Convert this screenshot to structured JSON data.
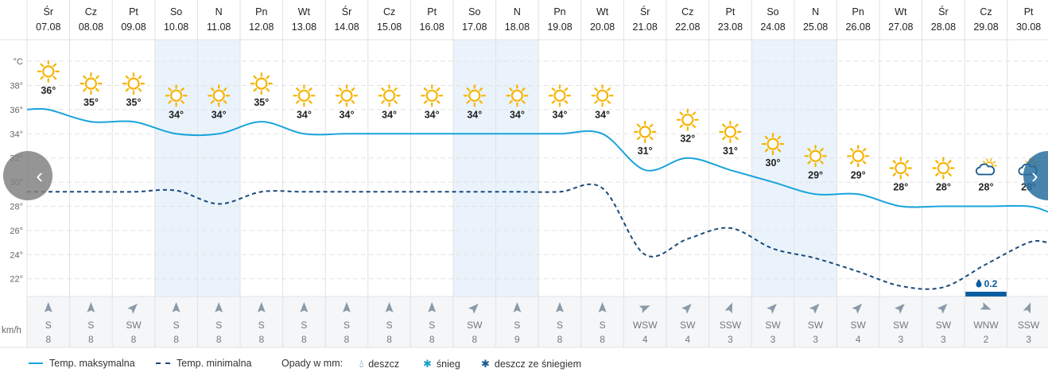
{
  "chart_data": {
    "type": "line",
    "y_axis_unit": "°C",
    "y_ticks": [
      38,
      36,
      34,
      32,
      30,
      28,
      26,
      24,
      22
    ],
    "ylim": [
      20.5,
      39.5
    ],
    "days": [
      {
        "dow": "Śr",
        "date": "07.08",
        "weekend": false,
        "icon": "sun-icon",
        "tmax": 36,
        "tmin": 29.2,
        "wind_dir": "S",
        "wind_deg": 180,
        "wind_speed": 8
      },
      {
        "dow": "Cz",
        "date": "08.08",
        "weekend": false,
        "icon": "sun-icon",
        "tmax": 35,
        "tmin": 29.2,
        "wind_dir": "S",
        "wind_deg": 180,
        "wind_speed": 8
      },
      {
        "dow": "Pt",
        "date": "09.08",
        "weekend": false,
        "icon": "sun-icon",
        "tmax": 35,
        "tmin": 29.2,
        "wind_dir": "SW",
        "wind_deg": 225,
        "wind_speed": 8
      },
      {
        "dow": "So",
        "date": "10.08",
        "weekend": true,
        "icon": "sun-icon",
        "tmax": 34,
        "tmin": 29.3,
        "wind_dir": "S",
        "wind_deg": 180,
        "wind_speed": 8
      },
      {
        "dow": "N",
        "date": "11.08",
        "weekend": true,
        "icon": "sun-icon",
        "tmax": 34,
        "tmin": 28.2,
        "wind_dir": "S",
        "wind_deg": 180,
        "wind_speed": 8
      },
      {
        "dow": "Pn",
        "date": "12.08",
        "weekend": false,
        "icon": "sun-icon",
        "tmax": 35,
        "tmin": 29.2,
        "wind_dir": "S",
        "wind_deg": 180,
        "wind_speed": 8
      },
      {
        "dow": "Wt",
        "date": "13.08",
        "weekend": false,
        "icon": "sun-icon",
        "tmax": 34,
        "tmin": 29.2,
        "wind_dir": "S",
        "wind_deg": 180,
        "wind_speed": 8
      },
      {
        "dow": "Śr",
        "date": "14.08",
        "weekend": false,
        "icon": "sun-icon",
        "tmax": 34,
        "tmin": 29.2,
        "wind_dir": "S",
        "wind_deg": 180,
        "wind_speed": 8
      },
      {
        "dow": "Cz",
        "date": "15.08",
        "weekend": false,
        "icon": "sun-icon",
        "tmax": 34,
        "tmin": 29.2,
        "wind_dir": "S",
        "wind_deg": 180,
        "wind_speed": 8
      },
      {
        "dow": "Pt",
        "date": "16.08",
        "weekend": false,
        "icon": "sun-icon",
        "tmax": 34,
        "tmin": 29.2,
        "wind_dir": "S",
        "wind_deg": 180,
        "wind_speed": 8
      },
      {
        "dow": "So",
        "date": "17.08",
        "weekend": true,
        "icon": "sun-icon",
        "tmax": 34,
        "tmin": 29.2,
        "wind_dir": "SW",
        "wind_deg": 225,
        "wind_speed": 8
      },
      {
        "dow": "N",
        "date": "18.08",
        "weekend": true,
        "icon": "sun-icon",
        "tmax": 34,
        "tmin": 29.2,
        "wind_dir": "S",
        "wind_deg": 180,
        "wind_speed": 9
      },
      {
        "dow": "Pn",
        "date": "19.08",
        "weekend": false,
        "icon": "sun-icon",
        "tmax": 34,
        "tmin": 29.2,
        "wind_dir": "S",
        "wind_deg": 180,
        "wind_speed": 8
      },
      {
        "dow": "Wt",
        "date": "20.08",
        "weekend": false,
        "icon": "sun-icon",
        "tmax": 34,
        "tmin": 29.5,
        "wind_dir": "S",
        "wind_deg": 180,
        "wind_speed": 8
      },
      {
        "dow": "Śr",
        "date": "21.08",
        "weekend": false,
        "icon": "sun-icon",
        "tmax": 31,
        "tmin": 24.0,
        "wind_dir": "WSW",
        "wind_deg": 247,
        "wind_speed": 4
      },
      {
        "dow": "Cz",
        "date": "22.08",
        "weekend": false,
        "icon": "sun-icon",
        "tmax": 32,
        "tmin": 25.3,
        "wind_dir": "SW",
        "wind_deg": 225,
        "wind_speed": 4
      },
      {
        "dow": "Pt",
        "date": "23.08",
        "weekend": false,
        "icon": "sun-icon",
        "tmax": 31,
        "tmin": 26.2,
        "wind_dir": "SSW",
        "wind_deg": 202,
        "wind_speed": 3
      },
      {
        "dow": "So",
        "date": "24.08",
        "weekend": true,
        "icon": "sun-icon",
        "tmax": 30,
        "tmin": 24.5,
        "wind_dir": "SW",
        "wind_deg": 225,
        "wind_speed": 3
      },
      {
        "dow": "N",
        "date": "25.08",
        "weekend": true,
        "icon": "sun-icon",
        "tmax": 29,
        "tmin": 23.7,
        "wind_dir": "SW",
        "wind_deg": 225,
        "wind_speed": 3
      },
      {
        "dow": "Pn",
        "date": "26.08",
        "weekend": false,
        "icon": "sun-icon",
        "tmax": 29,
        "tmin": 22.6,
        "wind_dir": "SW",
        "wind_deg": 225,
        "wind_speed": 4
      },
      {
        "dow": "Wt",
        "date": "27.08",
        "weekend": false,
        "icon": "sun-icon",
        "tmax": 28,
        "tmin": 21.4,
        "wind_dir": "SW",
        "wind_deg": 225,
        "wind_speed": 3
      },
      {
        "dow": "Śr",
        "date": "28.08",
        "weekend": false,
        "icon": "sun-icon",
        "tmax": 28,
        "tmin": 21.3,
        "wind_dir": "SW",
        "wind_deg": 225,
        "wind_speed": 3
      },
      {
        "dow": "Cz",
        "date": "29.08",
        "weekend": false,
        "icon": "partly-cloudy-icon",
        "tmax": 28,
        "tmin": 23.2,
        "wind_dir": "WNW",
        "wind_deg": 292,
        "wind_speed": 2,
        "precip": "0.2"
      },
      {
        "dow": "Pt",
        "date": "30.08",
        "weekend": false,
        "icon": "partly-cloudy-icon",
        "tmax": 28,
        "tmin": 25.0,
        "wind_dir": "SSW",
        "wind_deg": 202,
        "wind_speed": 3
      }
    ],
    "series": [
      {
        "name": "Temp. maksymalna",
        "key": "tmax",
        "color": "#19a4db",
        "style": "solid"
      },
      {
        "name": "Temp. minimalna",
        "key": "tmin",
        "color": "#1a4a7c",
        "style": "dashed"
      }
    ],
    "wind_unit": "km/h"
  },
  "legend": {
    "max_label": "Temp. maksymalna",
    "min_label": "Temp. minimalna",
    "precip_label": "Opady w mm:",
    "rain_label": "deszcz",
    "snow_label": "śnieg",
    "rain_snow_label": "deszcz ze śniegiem"
  },
  "nav": {
    "prev_glyph": "‹",
    "next_glyph": "›"
  },
  "colors": {
    "weekend_bg": "#eaf3fb",
    "grid": "#e2e2e2",
    "sun": "#f5b400",
    "cloud": "#1a5a8c",
    "precip_bar": "#0b5da0",
    "wind_icon": "#8a9aa8"
  }
}
